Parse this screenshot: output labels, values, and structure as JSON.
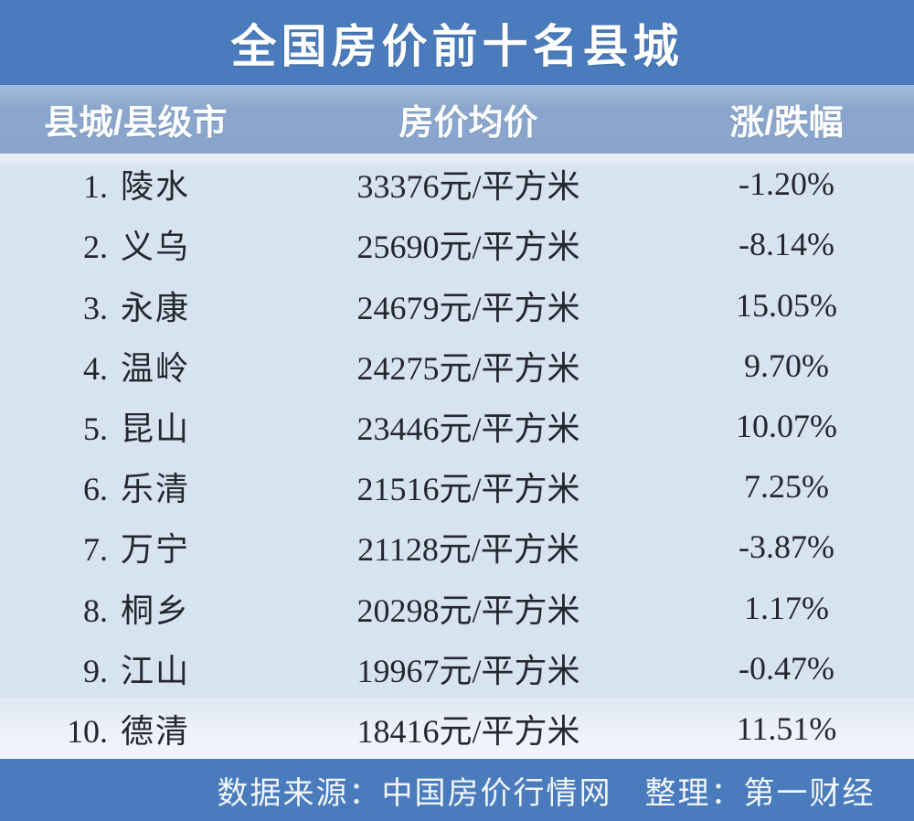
{
  "title": "全国房价前十名县城",
  "source_note": "数据来源：中国房价行情网　整理：第一财经",
  "colors": {
    "banner_blue": "#4a7cbd",
    "header_blue": "#8fa9ce",
    "body_light_blue": "#d8e3f0",
    "text_dark": "#24272e",
    "text_white": "#ffffff"
  },
  "chart_data": {
    "type": "table",
    "title": "全国房价前十名县城",
    "columns": [
      "县城/县级市",
      "房价均价",
      "涨/跌幅"
    ],
    "rows": [
      {
        "rank": "1.",
        "name": "陵水",
        "price": "33376元/平方米",
        "change": "-1.20%"
      },
      {
        "rank": "2.",
        "name": "义乌",
        "price": "25690元/平方米",
        "change": "-8.14%"
      },
      {
        "rank": "3.",
        "name": "永康",
        "price": "24679元/平方米",
        "change": "15.05%"
      },
      {
        "rank": "4.",
        "name": "温岭",
        "price": "24275元/平方米",
        "change": "9.70%"
      },
      {
        "rank": "5.",
        "name": "昆山",
        "price": "23446元/平方米",
        "change": "10.07%"
      },
      {
        "rank": "6.",
        "name": "乐清",
        "price": "21516元/平方米",
        "change": "7.25%"
      },
      {
        "rank": "7.",
        "name": "万宁",
        "price": "21128元/平方米",
        "change": "-3.87%"
      },
      {
        "rank": "8.",
        "name": "桐乡",
        "price": "20298元/平方米",
        "change": "1.17%"
      },
      {
        "rank": "9.",
        "name": "江山",
        "price": "19967元/平方米",
        "change": "-0.47%"
      },
      {
        "rank": "10.",
        "name": "德清",
        "price": "18416元/平方米",
        "change": "11.51%"
      }
    ],
    "prices_yuan_per_sqm": [
      33376,
      25690,
      24679,
      24275,
      23446,
      21516,
      21128,
      20298,
      19967,
      18416
    ],
    "change_pct": [
      -1.2,
      -8.14,
      15.05,
      9.7,
      10.07,
      7.25,
      -3.87,
      1.17,
      -0.47,
      11.51
    ],
    "source": "数据来源：中国房价行情网　整理：第一财经"
  }
}
